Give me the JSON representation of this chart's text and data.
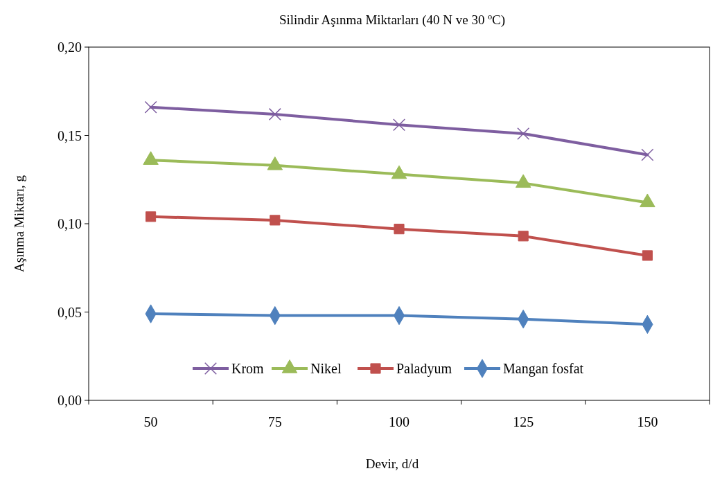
{
  "chart_data": {
    "type": "line",
    "title": "Silindir Aşınma Miktarları (40 N ve 30 ºC)",
    "xlabel": "Devir, d/d",
    "ylabel": "Aşınma Miktarı, g",
    "categories": [
      "50",
      "75",
      "100",
      "125",
      "150"
    ],
    "series": [
      {
        "name": "Krom",
        "color": "#7e5ea0",
        "marker": "cross",
        "values": [
          0.166,
          0.162,
          0.156,
          0.151,
          0.139
        ]
      },
      {
        "name": "Nikel",
        "color": "#9bbb59",
        "marker": "triangle",
        "values": [
          0.136,
          0.133,
          0.128,
          0.123,
          0.112
        ]
      },
      {
        "name": "Paladyum",
        "color": "#c0504d",
        "marker": "square",
        "values": [
          0.104,
          0.102,
          0.097,
          0.093,
          0.082
        ]
      },
      {
        "name": "Mangan fosfat",
        "color": "#4f81bd",
        "marker": "diamond",
        "values": [
          0.049,
          0.048,
          0.048,
          0.046,
          0.043
        ]
      }
    ],
    "ylim": [
      0,
      0.2
    ],
    "yticks": [
      {
        "value": 0,
        "label": "0,00"
      },
      {
        "value": 0.05,
        "label": "0,05"
      },
      {
        "value": 0.1,
        "label": "0,10"
      },
      {
        "value": 0.15,
        "label": "0,15"
      },
      {
        "value": 0.2,
        "label": "0,20"
      }
    ],
    "grid": false,
    "legend": "bottom",
    "line_style": "solid"
  }
}
